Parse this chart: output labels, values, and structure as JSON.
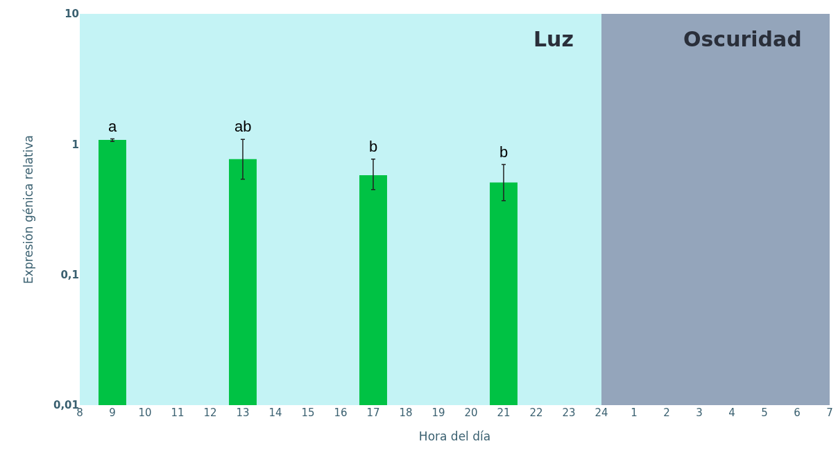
{
  "chart_data": {
    "type": "bar",
    "xlabel": "Hora del día",
    "ylabel": "Expresión génica relativa",
    "categories": [
      "8",
      "9",
      "10",
      "11",
      "12",
      "13",
      "14",
      "15",
      "16",
      "17",
      "18",
      "19",
      "20",
      "21",
      "22",
      "23",
      "24",
      "1",
      "2",
      "3",
      "4",
      "5",
      "6",
      "7"
    ],
    "series": [
      {
        "color": "#00c244",
        "values": [
          null,
          1.08,
          null,
          null,
          null,
          0.77,
          null,
          null,
          null,
          0.58,
          null,
          null,
          null,
          0.51,
          null,
          null,
          null,
          null,
          null,
          null,
          null,
          null,
          null,
          null
        ],
        "errors": [
          null,
          [
            1.05,
            1.1
          ],
          null,
          null,
          null,
          [
            0.54,
            1.09
          ],
          null,
          null,
          null,
          [
            0.45,
            0.77
          ],
          null,
          null,
          null,
          [
            0.37,
            0.7
          ],
          null,
          null,
          null,
          null,
          null,
          null,
          null,
          null,
          null,
          null
        ]
      }
    ],
    "log": "y",
    "ylim": [
      0.01,
      10
    ],
    "yticks": [
      {
        "value": 0.01,
        "label": "0,01"
      },
      {
        "value": 0.1,
        "label": "0,1"
      },
      1,
      10
    ],
    "grid": false,
    "legend": false,
    "bands": [
      {
        "axis": "x",
        "from": "8",
        "to": "24",
        "label": "Luz",
        "color": "#c4f3f5"
      },
      {
        "axis": "x",
        "from": "24",
        "to": "7",
        "label": "Oscuridad",
        "color": "#94a5bb"
      }
    ],
    "annotations": [
      {
        "text": "a",
        "x": "9",
        "y": 1.1
      },
      {
        "text": "ab",
        "x": "13",
        "y": 1.09
      },
      {
        "text": "b",
        "x": "17",
        "y": 0.77
      },
      {
        "text": "b",
        "x": "21",
        "y": 0.7
      }
    ]
  }
}
